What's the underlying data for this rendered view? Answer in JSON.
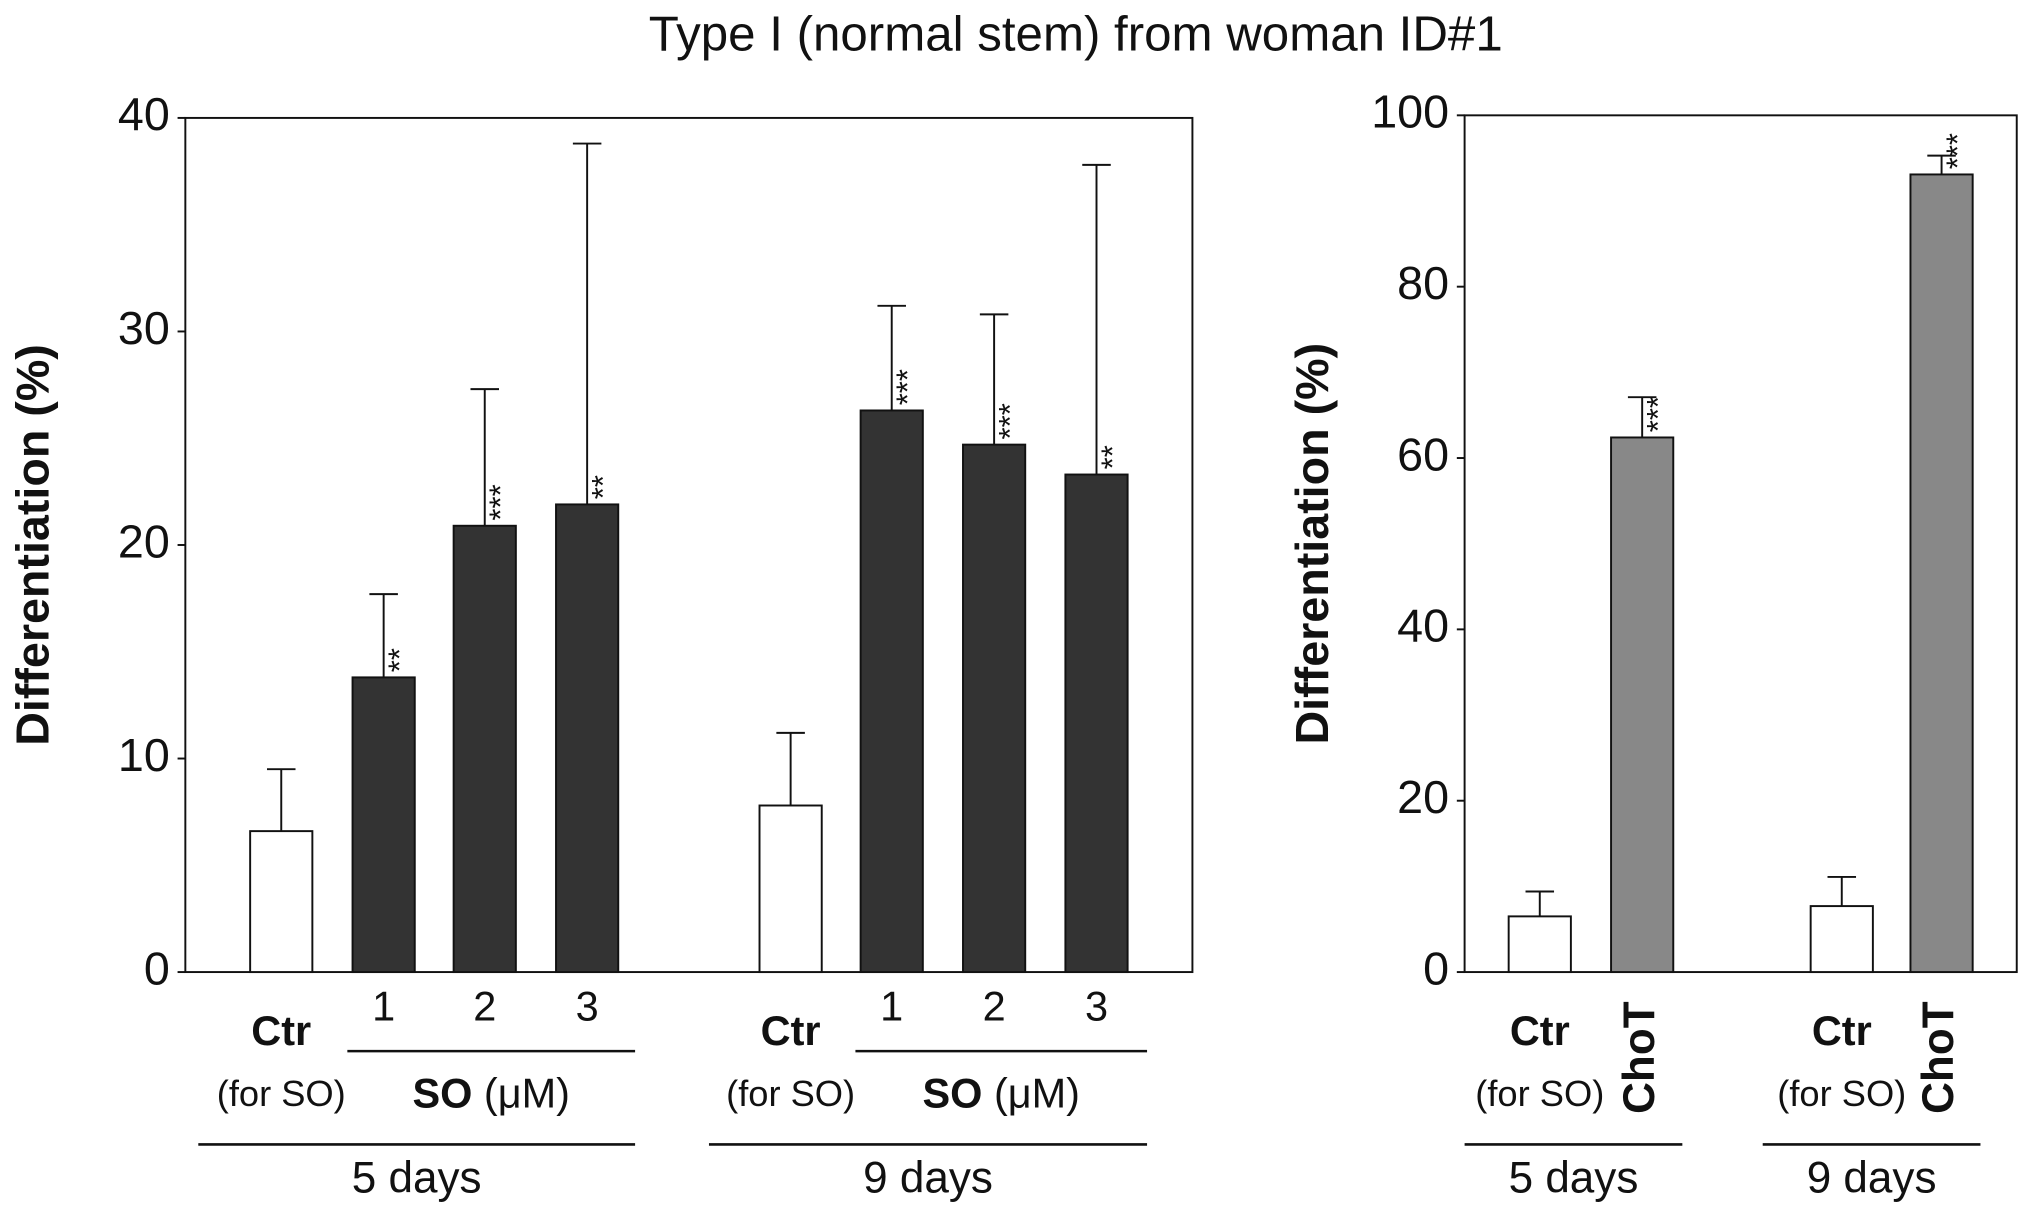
{
  "title": "Type I (normal stem) from woman ID#1",
  "chart_data": [
    {
      "type": "bar",
      "ylabel": "Differentiation (%)",
      "ylim": [
        0,
        40
      ],
      "yticks": [
        0,
        10,
        20,
        30,
        40
      ],
      "groups": [
        {
          "label": "5 days",
          "note": "(for SO)",
          "treatment": "SO",
          "unit": "(μM)"
        },
        {
          "label": "9 days",
          "note": "(for SO)",
          "treatment": "SO",
          "unit": "(μM)"
        }
      ],
      "categories": [
        "Ctr",
        "1",
        "2",
        "3",
        "Ctr",
        "1",
        "2",
        "3"
      ],
      "values": [
        6.6,
        13.8,
        20.9,
        21.9,
        7.8,
        26.3,
        24.7,
        23.3
      ],
      "errors": [
        2.9,
        3.9,
        6.4,
        16.9,
        3.4,
        4.9,
        6.1,
        14.5
      ],
      "annotations": [
        null,
        "**",
        "***",
        "**",
        null,
        "***",
        "***",
        "**"
      ],
      "colors": [
        "#ffffff",
        "#333333",
        "#333333",
        "#333333",
        "#ffffff",
        "#333333",
        "#333333",
        "#333333"
      ]
    },
    {
      "type": "bar",
      "ylabel": "Differentiation (%)",
      "ylim": [
        0,
        100
      ],
      "yticks": [
        0,
        20,
        40,
        60,
        80,
        100
      ],
      "groups": [
        {
          "label": "5 days",
          "note": "(for SO)"
        },
        {
          "label": "9 days",
          "note": "(for SO)"
        }
      ],
      "categories": [
        "Ctr",
        "ChoT",
        "Ctr",
        "ChoT"
      ],
      "values": [
        6.5,
        62.4,
        7.7,
        93.1
      ],
      "errors": [
        2.9,
        4.7,
        3.4,
        2.2
      ],
      "annotations": [
        null,
        "***",
        null,
        "***"
      ],
      "colors": [
        "#ffffff",
        "#888888",
        "#ffffff",
        "#888888"
      ]
    }
  ]
}
